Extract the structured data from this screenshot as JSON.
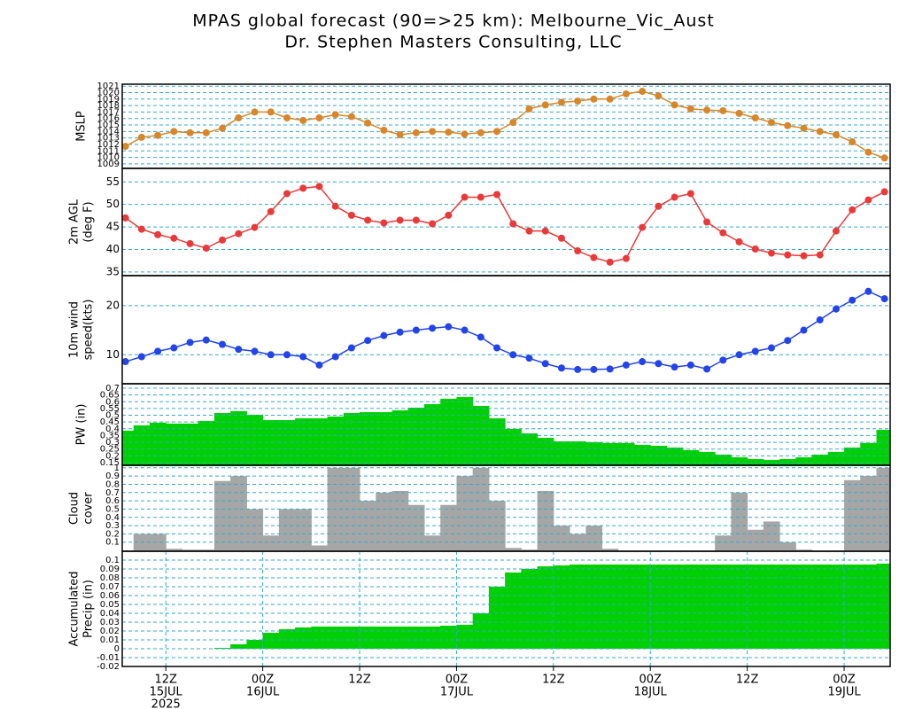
{
  "title": "MPAS global forecast (90=>25 km): Melbourne_Vic_Aust",
  "subtitle": "Dr. Stephen Masters Consulting, LLC",
  "x_axis": {
    "x": [
      -5,
      -3,
      -1,
      1,
      3,
      5,
      7,
      9,
      11,
      13,
      15,
      17,
      19,
      21,
      23,
      25,
      27,
      29,
      31,
      33,
      35,
      37,
      39,
      41,
      43,
      45,
      47,
      49,
      51,
      53,
      55,
      57,
      59,
      61,
      63,
      65,
      67,
      69,
      71,
      73,
      75,
      77,
      79,
      81,
      83,
      85,
      87,
      89
    ],
    "xlim": [
      -5.4,
      89.7
    ],
    "xticks": [
      {
        "value": 0,
        "label": "12Z"
      },
      {
        "value": 12,
        "label": "00Z"
      },
      {
        "value": 24,
        "label": "12Z"
      },
      {
        "value": 36,
        "label": "00Z"
      },
      {
        "value": 48,
        "label": "12Z"
      },
      {
        "value": 60,
        "label": "00Z"
      },
      {
        "value": 72,
        "label": "12Z"
      },
      {
        "value": 84,
        "label": "00Z"
      }
    ],
    "date_labels": [
      {
        "value": 0,
        "label": "15JUL"
      },
      {
        "value": 12,
        "label": "16JUL"
      },
      {
        "value": 36,
        "label": "17JUL"
      },
      {
        "value": 60,
        "label": "18JUL"
      },
      {
        "value": 84,
        "label": "19JUL"
      }
    ],
    "year_label": {
      "value": 0,
      "label": "2025"
    }
  },
  "chart_data": [
    {
      "type": "line",
      "ylabel": [
        "MSLP"
      ],
      "color": "#d8862a",
      "grid": true,
      "ylim": [
        1008.3,
        1021.3
      ],
      "yticks": [
        1009,
        1010,
        1011,
        1012,
        1013,
        1014,
        1015,
        1016,
        1017,
        1018,
        1019,
        1020,
        1021
      ],
      "values": [
        1011.7,
        1013.1,
        1013.4,
        1014.0,
        1013.8,
        1013.8,
        1014.5,
        1016.1,
        1017.0,
        1017.0,
        1016.1,
        1015.7,
        1016.1,
        1016.6,
        1016.3,
        1015.3,
        1014.2,
        1013.5,
        1013.8,
        1014.0,
        1013.9,
        1013.6,
        1013.8,
        1014.0,
        1015.4,
        1017.5,
        1018.1,
        1018.5,
        1018.7,
        1019.0,
        1019.0,
        1019.8,
        1020.2,
        1019.5,
        1018.1,
        1017.5,
        1017.3,
        1017.2,
        1016.8,
        1016.1,
        1015.4,
        1014.9,
        1014.5,
        1014.0,
        1013.5,
        1012.4,
        1010.8,
        1009.9
      ]
    },
    {
      "type": "line",
      "ylabel": [
        "2m AGL",
        "(deg F)"
      ],
      "color": "#e83a3a",
      "grid": true,
      "ylim": [
        34.2,
        58
      ],
      "yticks": [
        35,
        40,
        45,
        50,
        55
      ],
      "values": [
        47.0,
        44.5,
        43.3,
        42.5,
        41.3,
        40.3,
        42.1,
        43.5,
        44.9,
        48.4,
        52.4,
        53.6,
        54.0,
        49.6,
        47.6,
        46.5,
        45.9,
        46.5,
        46.5,
        45.7,
        47.6,
        51.6,
        51.6,
        52.2,
        45.7,
        44.1,
        44.1,
        42.5,
        39.7,
        38.2,
        37.2,
        38.0,
        44.9,
        49.6,
        51.6,
        52.4,
        46.1,
        43.7,
        41.7,
        40.1,
        39.2,
        38.8,
        38.6,
        38.8,
        44.1,
        48.8,
        51.0,
        52.8
      ]
    },
    {
      "type": "line",
      "ylabel": [
        "10m wind",
        "speed(kts)"
      ],
      "color": "#2244e8",
      "grid": true,
      "ylim": [
        4.1,
        26.1
      ],
      "yticks": [
        10,
        20
      ],
      "values": [
        8.6,
        9.6,
        10.7,
        11.4,
        12.5,
        13.0,
        12.1,
        11.1,
        10.7,
        10.0,
        10.0,
        9.6,
        7.9,
        9.6,
        11.4,
        12.9,
        13.9,
        14.6,
        15.0,
        15.4,
        15.7,
        15.0,
        13.6,
        11.4,
        10.0,
        9.3,
        8.2,
        7.3,
        7.0,
        7.0,
        7.1,
        7.9,
        8.6,
        8.2,
        7.5,
        7.9,
        7.1,
        8.9,
        10.0,
        10.7,
        11.4,
        12.9,
        15.0,
        17.1,
        19.3,
        21.1,
        22.9,
        21.4
      ]
    },
    {
      "type": "area",
      "ylabel": [
        "PW (in)"
      ],
      "color": "#00d000",
      "grid": true,
      "ylim": [
        0.13,
        0.733
      ],
      "yticks": [
        0.15,
        0.2,
        0.25,
        0.3,
        0.35,
        0.4,
        0.45,
        0.5,
        0.55,
        0.6,
        0.65,
        0.7
      ],
      "values": [
        0.386,
        0.425,
        0.445,
        0.438,
        0.438,
        0.458,
        0.517,
        0.53,
        0.504,
        0.464,
        0.464,
        0.477,
        0.477,
        0.49,
        0.517,
        0.523,
        0.523,
        0.536,
        0.556,
        0.582,
        0.622,
        0.635,
        0.569,
        0.477,
        0.399,
        0.366,
        0.333,
        0.307,
        0.307,
        0.301,
        0.294,
        0.294,
        0.281,
        0.274,
        0.261,
        0.242,
        0.229,
        0.209,
        0.189,
        0.176,
        0.17,
        0.176,
        0.189,
        0.209,
        0.229,
        0.261,
        0.294,
        0.392
      ]
    },
    {
      "type": "bar",
      "ylabel": [
        "Cloud",
        "cover"
      ],
      "color": "#a6a6a6",
      "grid": true,
      "ylim": [
        -0.01,
        1.03
      ],
      "yticks": [
        0.1,
        0.2,
        0.3,
        0.4,
        0.5,
        0.6,
        0.7,
        0.8,
        0.9,
        1
      ],
      "values": [
        0,
        0.2,
        0.2,
        0.02,
        0.01,
        0.01,
        0.84,
        0.9,
        0.5,
        0.18,
        0.5,
        0.5,
        0.06,
        1.0,
        1.0,
        0.6,
        0.7,
        0.72,
        0.55,
        0.18,
        0.55,
        0.9,
        1.0,
        0.6,
        0.03,
        0.01,
        0.72,
        0.3,
        0.2,
        0.3,
        0.02,
        0,
        0,
        0,
        0,
        0,
        0,
        0.18,
        0.7,
        0.25,
        0.35,
        0.1,
        0.01,
        0,
        0,
        0.85,
        0.9,
        1.0
      ]
    },
    {
      "type": "area",
      "ylabel": [
        "Accumulated",
        "Precip (in)"
      ],
      "color": "#00d000",
      "grid": true,
      "xgrid": true,
      "ylim": [
        -0.02,
        0.11
      ],
      "yticks": [
        -0.02,
        -0.01,
        0,
        0.01,
        0.02,
        0.03,
        0.04,
        0.05,
        0.06,
        0.07,
        0.08,
        0.09,
        0.1
      ],
      "values": [
        0,
        0,
        0,
        0,
        0,
        0,
        0.001,
        0.005,
        0.01,
        0.018,
        0.022,
        0.024,
        0.025,
        0.025,
        0.025,
        0.025,
        0.025,
        0.025,
        0.025,
        0.025,
        0.026,
        0.027,
        0.04,
        0.07,
        0.086,
        0.09,
        0.093,
        0.094,
        0.095,
        0.095,
        0.095,
        0.095,
        0.095,
        0.095,
        0.095,
        0.095,
        0.095,
        0.095,
        0.095,
        0.095,
        0.095,
        0.095,
        0.095,
        0.095,
        0.095,
        0.095,
        0.095,
        0.096
      ]
    }
  ]
}
